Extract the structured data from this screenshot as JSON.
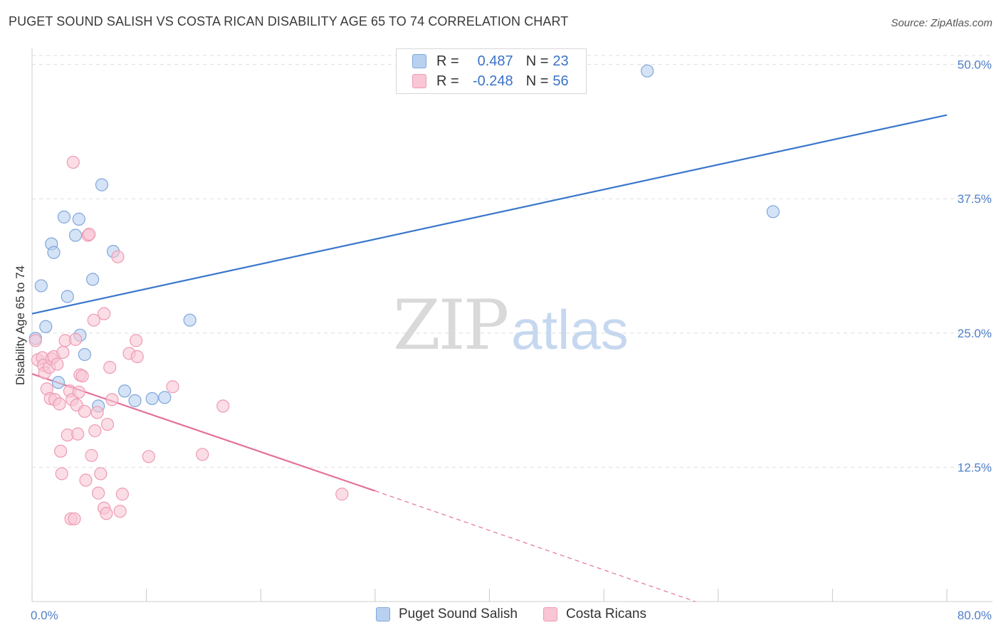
{
  "title": "PUGET SOUND SALISH VS COSTA RICAN DISABILITY AGE 65 TO 74 CORRELATION CHART",
  "source": "Source: ZipAtlas.com",
  "watermark": {
    "zip": "ZIP",
    "atlas": "atlas"
  },
  "legend": {
    "rows": [
      {
        "r_label": "R = ",
        "r_value": "0.487",
        "n_label": "N = ",
        "n_value": "23"
      },
      {
        "r_label": "R = ",
        "r_value": "-0.248",
        "n_label": "N = ",
        "n_value": "56"
      }
    ]
  },
  "colors": {
    "blue_fill": "#b9d1f0",
    "blue_stroke": "#7fa6dc",
    "blue_line": "#3a76cc",
    "pink_fill": "#f8c6d4",
    "pink_stroke": "#ee9ab3",
    "pink_line": "#e4709a",
    "grid": "#dedede",
    "tick_text": "#4f7fc9"
  },
  "chart_data": {
    "type": "scatter",
    "title": "PUGET SOUND SALISH VS COSTA RICAN DISABILITY AGE 65 TO 74 CORRELATION CHART",
    "xlabel": "",
    "ylabel": "Disability Age 65 to 74",
    "xlim": [
      0,
      80
    ],
    "ylim": [
      0,
      51.5
    ],
    "x_tick_labels": [
      "0.0%",
      "80.0%"
    ],
    "y_ticks": [
      12.5,
      25.0,
      37.5,
      50.0
    ],
    "y_tick_labels": [
      "12.5%",
      "25.0%",
      "37.5%",
      "50.0%"
    ],
    "series": [
      {
        "name": "Puget Sound Salish",
        "color": "blue",
        "points": [
          [
            0.3,
            24.5
          ],
          [
            1.2,
            25.6
          ],
          [
            0.8,
            29.4
          ],
          [
            1.7,
            33.3
          ],
          [
            1.9,
            32.5
          ],
          [
            2.8,
            35.8
          ],
          [
            3.1,
            28.4
          ],
          [
            3.8,
            34.1
          ],
          [
            4.1,
            35.6
          ],
          [
            4.2,
            24.8
          ],
          [
            4.6,
            23.0
          ],
          [
            5.3,
            30.0
          ],
          [
            6.1,
            38.8
          ],
          [
            7.1,
            32.6
          ],
          [
            8.1,
            19.6
          ],
          [
            9.0,
            18.7
          ],
          [
            10.5,
            18.9
          ],
          [
            11.6,
            19.0
          ],
          [
            13.8,
            26.2
          ],
          [
            2.3,
            20.4
          ],
          [
            5.8,
            18.2
          ],
          [
            53.8,
            49.4
          ],
          [
            64.8,
            36.3
          ]
        ],
        "trend": {
          "x": [
            0,
            80
          ],
          "y": [
            26.8,
            45.3
          ]
        }
      },
      {
        "name": "Costa Ricans",
        "color": "pink",
        "points": [
          [
            0.3,
            24.3
          ],
          [
            0.5,
            22.5
          ],
          [
            0.9,
            22.7
          ],
          [
            1.0,
            22.0
          ],
          [
            1.1,
            21.3
          ],
          [
            1.3,
            19.8
          ],
          [
            1.5,
            21.8
          ],
          [
            1.6,
            18.9
          ],
          [
            1.7,
            22.6
          ],
          [
            1.9,
            22.8
          ],
          [
            2.0,
            18.8
          ],
          [
            2.2,
            22.1
          ],
          [
            2.4,
            18.4
          ],
          [
            2.5,
            14.0
          ],
          [
            2.6,
            11.9
          ],
          [
            2.7,
            23.2
          ],
          [
            2.9,
            24.3
          ],
          [
            3.1,
            15.5
          ],
          [
            3.3,
            19.6
          ],
          [
            3.4,
            7.7
          ],
          [
            3.5,
            18.8
          ],
          [
            3.6,
            40.9
          ],
          [
            3.7,
            7.7
          ],
          [
            3.8,
            24.4
          ],
          [
            3.9,
            18.3
          ],
          [
            4.0,
            15.6
          ],
          [
            4.1,
            19.5
          ],
          [
            4.2,
            21.1
          ],
          [
            4.4,
            21.0
          ],
          [
            4.6,
            17.7
          ],
          [
            4.7,
            11.3
          ],
          [
            4.9,
            34.1
          ],
          [
            5.0,
            34.2
          ],
          [
            5.2,
            13.6
          ],
          [
            5.4,
            26.2
          ],
          [
            5.5,
            15.9
          ],
          [
            5.7,
            17.6
          ],
          [
            5.8,
            10.1
          ],
          [
            6.0,
            11.9
          ],
          [
            6.3,
            26.8
          ],
          [
            6.3,
            8.7
          ],
          [
            6.5,
            8.2
          ],
          [
            6.8,
            21.8
          ],
          [
            7.0,
            18.8
          ],
          [
            7.5,
            32.1
          ],
          [
            7.7,
            8.4
          ],
          [
            7.9,
            10.0
          ],
          [
            8.5,
            23.1
          ],
          [
            9.1,
            24.3
          ],
          [
            9.2,
            22.8
          ],
          [
            10.2,
            13.5
          ],
          [
            12.3,
            20.0
          ],
          [
            14.9,
            13.7
          ],
          [
            16.7,
            18.2
          ],
          [
            27.1,
            10.0
          ],
          [
            6.6,
            16.5
          ]
        ],
        "trend": {
          "x": [
            0,
            30.0
          ],
          "y": [
            21.2,
            10.3
          ]
        },
        "trend_dashed": {
          "x": [
            30.0,
            58.0
          ],
          "y": [
            10.3,
            0
          ]
        }
      }
    ],
    "legend_labels": [
      "Puget Sound Salish",
      "Costa Ricans"
    ]
  }
}
